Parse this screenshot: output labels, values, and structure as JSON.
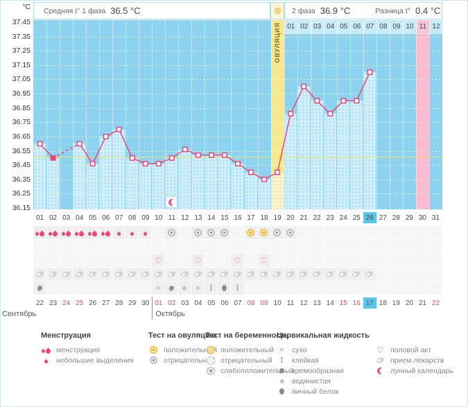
{
  "unit": "°C",
  "header": {
    "phase1_label": "Средняя t° 1 фаза",
    "phase1_value": "36.5 °C",
    "phase2_label": "2 фаза",
    "phase2_value": "36.9 °C",
    "diff_label": "Разница t°",
    "diff_value": "0.4 °C"
  },
  "chart_data": {
    "type": "line",
    "title": "Basal body temperature cycle chart",
    "ylabel": "°C",
    "ylim": [
      36.15,
      37.45
    ],
    "y_ticks": [
      "37.45",
      "37.35",
      "37.25",
      "37.15",
      "37.05",
      "36.95",
      "36.85",
      "36.75",
      "36.65",
      "36.55",
      "36.45",
      "36.35",
      "36.25",
      "36.15"
    ],
    "x_days": 31,
    "temps_by_day": {
      "1": 36.6,
      "2": 36.5,
      "4": 36.6,
      "5": 36.46,
      "6": 36.65,
      "7": 36.7,
      "8": 36.5,
      "9": 36.46,
      "10": 36.46,
      "11": 36.5,
      "12": 36.56,
      "13": 36.52,
      "14": 36.52,
      "15": 36.52,
      "16": 36.46,
      "17": 36.4,
      "18": 36.35,
      "19": 36.4,
      "20": 36.81,
      "21": 37.0,
      "22": 36.9,
      "23": 36.81,
      "24": 36.9,
      "25": 36.9,
      "26": 37.1
    },
    "missing_day": 3,
    "filled_marker_days": [
      2
    ],
    "coverline": 36.51,
    "ovulation_day": 19,
    "ovulation_label": "ОВУЛЯЦИЯ",
    "predicted_period_day": 30,
    "today_day": 26,
    "lunar_day": 11,
    "phase2_numbers": [
      "01",
      "02",
      "03",
      "04",
      "05",
      "06",
      "07",
      "08",
      "09",
      "10",
      "11",
      "12"
    ],
    "phase2_highlighted": "11",
    "line_color": "#e8477c",
    "bg_blue": "#8dd3ef",
    "bar_blue": "#cdeefb",
    "ovulation_yellow": "#f6e88e",
    "period_pink": "#f9bcd0",
    "grid": true
  },
  "events": {
    "menstruation_heavy_days": [
      1,
      2,
      3,
      4,
      5,
      6
    ],
    "menstruation_light_days": [
      7,
      8,
      9
    ],
    "ovulation_test_negative_days": [
      11,
      13,
      14,
      15,
      19,
      20
    ],
    "ovulation_test_positive_days": [
      17,
      18
    ],
    "intercourse_days": [
      10,
      13,
      16,
      18
    ],
    "medication_days": [
      1,
      2,
      3,
      4,
      5,
      6,
      7,
      8,
      9,
      10,
      11,
      12,
      13,
      14,
      15,
      16,
      17,
      18,
      19,
      20,
      21,
      22,
      23,
      24,
      25,
      26
    ],
    "cervical_by_day": {
      "1": "creamy",
      "10": "dry",
      "11": "creamy",
      "12": "watery",
      "13": "dry",
      "14": "sticky",
      "15": "eggwhite",
      "16": "sticky"
    }
  },
  "calendar": {
    "day_numbers": [
      "01",
      "02",
      "03",
      "04",
      "05",
      "06",
      "07",
      "08",
      "09",
      "10",
      "11",
      "12",
      "13",
      "14",
      "15",
      "16",
      "17",
      "18",
      "19",
      "20",
      "21",
      "22",
      "23",
      "24",
      "25",
      "26",
      "27",
      "28",
      "29",
      "30",
      "31"
    ],
    "dates": [
      {
        "t": "22"
      },
      {
        "t": "23"
      },
      {
        "t": "24",
        "red": true
      },
      {
        "t": "25",
        "red": true
      },
      {
        "t": "26"
      },
      {
        "t": "27"
      },
      {
        "t": "28"
      },
      {
        "t": "29"
      },
      {
        "t": "30"
      },
      {
        "t": "01",
        "red": true
      },
      {
        "t": "02",
        "red": true
      },
      {
        "t": "03"
      },
      {
        "t": "04"
      },
      {
        "t": "05"
      },
      {
        "t": "06"
      },
      {
        "t": "07"
      },
      {
        "t": "08",
        "red": true
      },
      {
        "t": "09",
        "red": true
      },
      {
        "t": "10"
      },
      {
        "t": "11"
      },
      {
        "t": "12"
      },
      {
        "t": "13"
      },
      {
        "t": "14"
      },
      {
        "t": "15",
        "red": true
      },
      {
        "t": "16",
        "red": true
      },
      {
        "t": "17",
        "today": true
      },
      {
        "t": "18"
      },
      {
        "t": "19"
      },
      {
        "t": "20"
      },
      {
        "t": "21"
      },
      {
        "t": "22",
        "red": true
      }
    ],
    "months": [
      {
        "label": "Сентябрь"
      },
      {
        "label": "Октябрь"
      }
    ]
  },
  "legend": [
    {
      "title": "Менструация",
      "items": [
        {
          "icon": "menses-heavy",
          "label": "менструация"
        },
        {
          "icon": "menses-light",
          "label": "небольшие выделения"
        }
      ]
    },
    {
      "title": "Тест на овуляцию",
      "items": [
        {
          "icon": "ovu-pos",
          "label": "положительный"
        },
        {
          "icon": "ovu-neg",
          "label": "отрицательный"
        }
      ]
    },
    {
      "title": "Тест на беременность",
      "items": [
        {
          "icon": "preg-pos",
          "label": "положительный"
        },
        {
          "icon": "preg-neg",
          "label": "отрицательный"
        },
        {
          "icon": "preg-weak",
          "label": "слабоположительный"
        }
      ]
    },
    {
      "title": "Цервикальная жидкость",
      "items": [
        {
          "icon": "dry",
          "label": "сухо"
        },
        {
          "icon": "sticky",
          "label": "клейкая"
        },
        {
          "icon": "creamy",
          "label": "кремообразная"
        },
        {
          "icon": "watery",
          "label": "водянистая"
        },
        {
          "icon": "eggwhite",
          "label": "яичный белок"
        }
      ]
    },
    {
      "title": "",
      "items": [
        {
          "icon": "heart",
          "label": "половой акт"
        },
        {
          "icon": "pill",
          "label": "прием лекарств"
        },
        {
          "icon": "moon",
          "label": "лунный календарь"
        }
      ]
    }
  ]
}
